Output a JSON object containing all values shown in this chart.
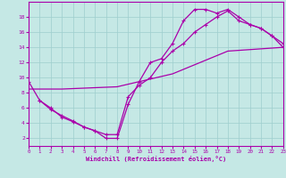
{
  "xlabel": "Windchill (Refroidissement éolien,°C)",
  "xlim": [
    0,
    23
  ],
  "ylim": [
    1,
    20
  ],
  "xticks": [
    0,
    1,
    2,
    3,
    4,
    5,
    6,
    7,
    8,
    9,
    10,
    11,
    12,
    13,
    14,
    15,
    16,
    17,
    18,
    19,
    20,
    21,
    22,
    23
  ],
  "yticks": [
    2,
    4,
    6,
    8,
    10,
    12,
    14,
    16,
    18
  ],
  "bg_color": "#c5e8e5",
  "line_color": "#aa00aa",
  "grid_color": "#9ecece",
  "line1_x": [
    0,
    1,
    2,
    3,
    4,
    5,
    6,
    7,
    8,
    9,
    10,
    11,
    12,
    13,
    14,
    15,
    16,
    17,
    18,
    19,
    20,
    21,
    22,
    23
  ],
  "line1_y": [
    9.5,
    7.0,
    6.0,
    4.8,
    4.2,
    3.5,
    3.0,
    2.0,
    2.0,
    6.5,
    9.5,
    12.0,
    12.5,
    14.5,
    17.5,
    19.0,
    19.0,
    18.5,
    19.0,
    18.0,
    17.0,
    16.5,
    15.5,
    14.0
  ],
  "line2_x": [
    1,
    2,
    3,
    4,
    5,
    6,
    7,
    8,
    9,
    10,
    11,
    12,
    13,
    14,
    15,
    16,
    17,
    18,
    19,
    20,
    21,
    22,
    23
  ],
  "line2_y": [
    7.0,
    5.8,
    5.0,
    4.3,
    3.5,
    3.0,
    2.5,
    2.5,
    7.5,
    9.0,
    10.0,
    12.0,
    13.5,
    14.5,
    16.0,
    17.0,
    18.0,
    18.8,
    17.5,
    17.0,
    16.5,
    15.5,
    14.5
  ],
  "line3_x": [
    0,
    3,
    8,
    13,
    18,
    23
  ],
  "line3_y": [
    8.5,
    8.5,
    8.8,
    10.5,
    13.5,
    14.0
  ]
}
